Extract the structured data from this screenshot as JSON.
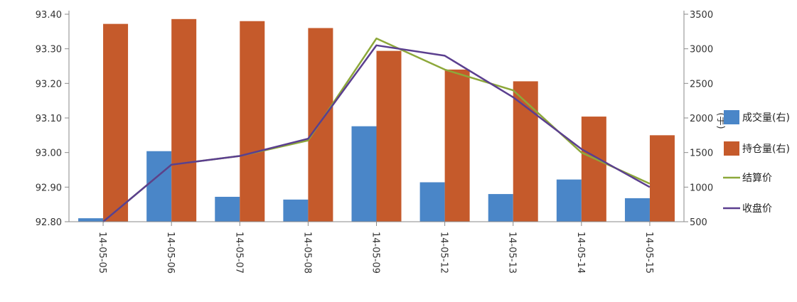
{
  "chart_data": {
    "type": "bar",
    "categories": [
      "14-05-05",
      "14-05-06",
      "14-05-07",
      "14-05-08",
      "14-05-09",
      "14-05-12",
      "14-05-13",
      "14-05-14",
      "14-05-15"
    ],
    "series": [
      {
        "name": "成交量(右)",
        "type": "bar",
        "axis": "right",
        "color": "#4a86c8",
        "values": [
          550,
          1520,
          860,
          820,
          1880,
          1070,
          900,
          1110,
          840
        ]
      },
      {
        "name": "持仓量(右)",
        "type": "bar",
        "axis": "right",
        "color": "#c55a2b",
        "values": [
          3360,
          3430,
          3400,
          3300,
          2970,
          2700,
          2530,
          2020,
          1750
        ]
      },
      {
        "name": "结算价",
        "type": "line",
        "axis": "left",
        "color": "#8da83a",
        "values": [
          92.8,
          92.965,
          92.99,
          93.035,
          93.33,
          93.24,
          93.18,
          93.0,
          92.91
        ]
      },
      {
        "name": "收盘价",
        "type": "line",
        "axis": "left",
        "color": "#5b3f8f",
        "values": [
          92.8,
          92.965,
          92.99,
          93.04,
          93.31,
          93.28,
          93.16,
          93.01,
          92.9
        ]
      }
    ],
    "y_left": {
      "ylim": [
        92.8,
        93.4
      ],
      "ticks": [
        "92.80",
        "92.90",
        "93.00",
        "93.10",
        "93.20",
        "93.30",
        "93.40"
      ]
    },
    "y_right": {
      "ylim": [
        500,
        3500
      ],
      "ticks": [
        "500",
        "1000",
        "1500",
        "2000",
        "2500",
        "3000",
        "3500"
      ],
      "label": "(手)"
    },
    "legend_position": "right",
    "grid": false
  }
}
